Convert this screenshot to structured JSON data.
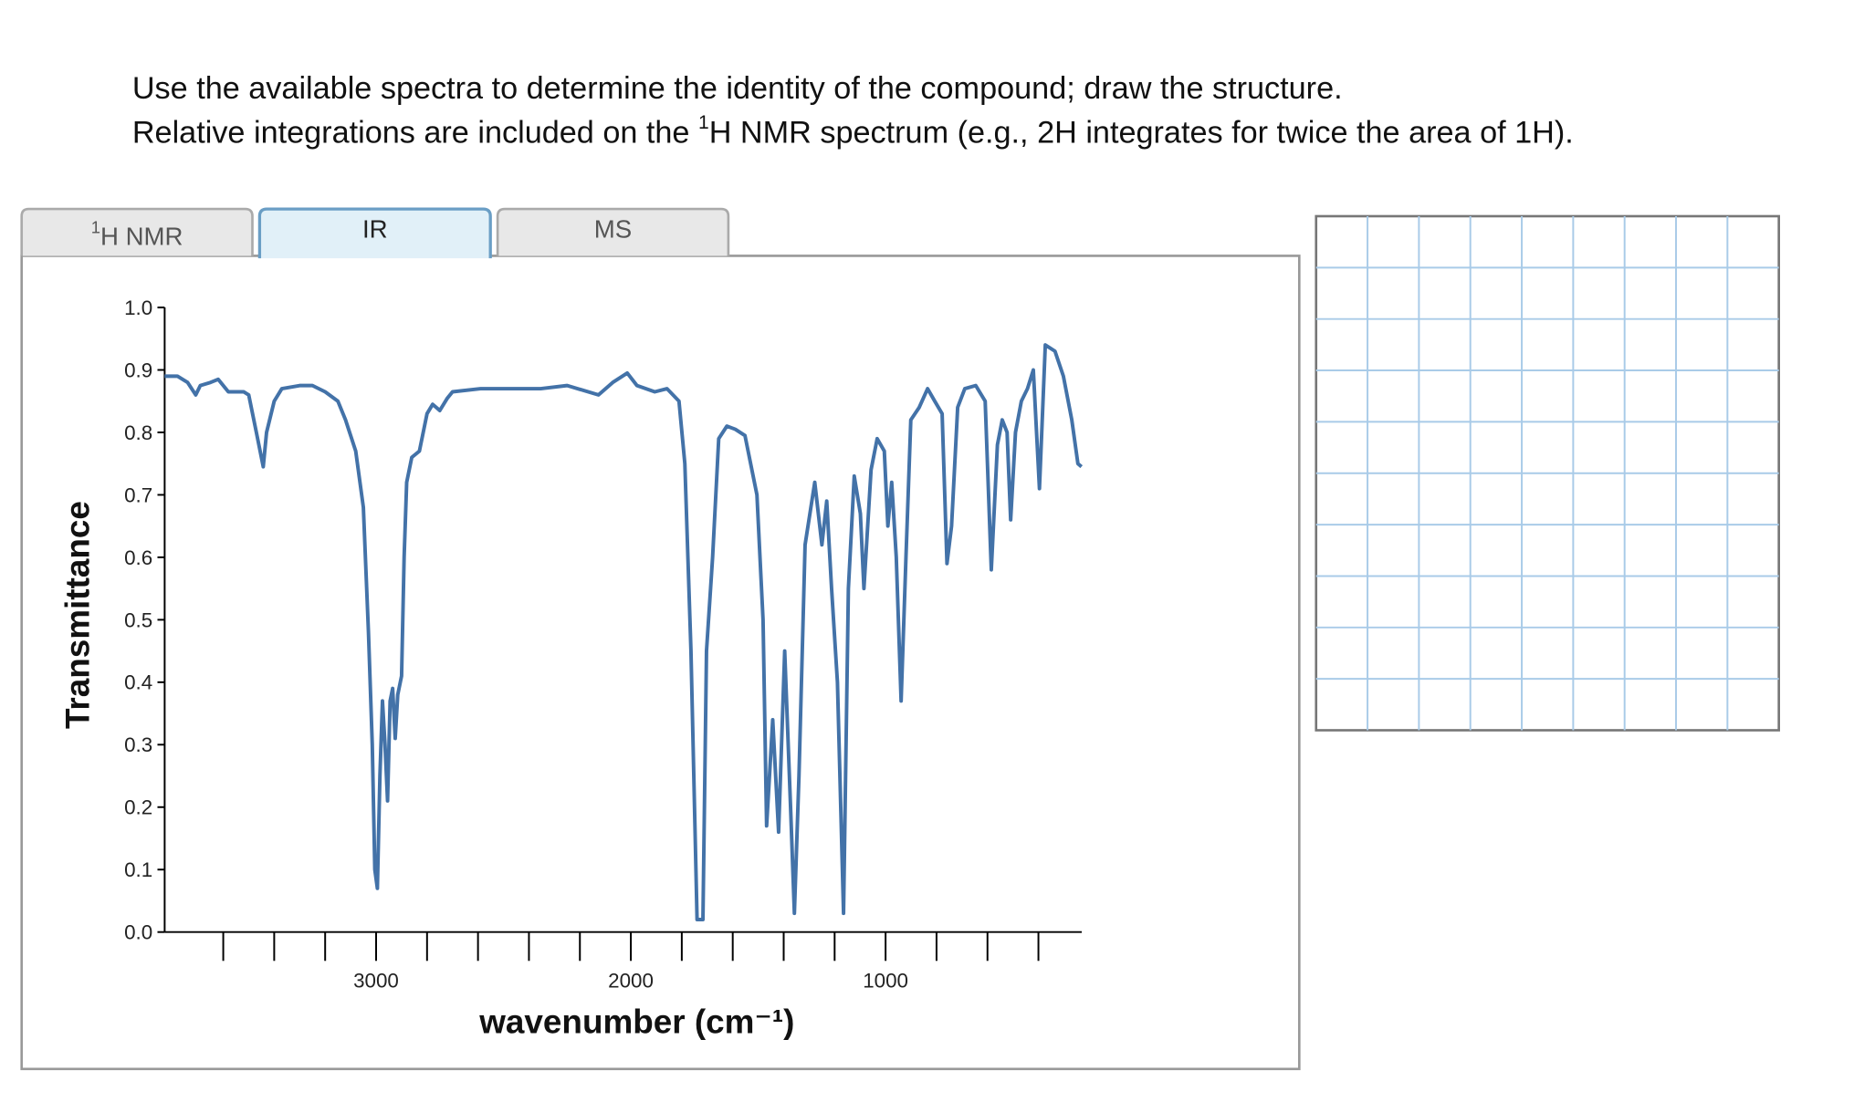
{
  "instructions": {
    "line1": "Use the available spectra to determine the identity of the compound; draw the structure.",
    "line2_before": "Relative integrations are included on the ",
    "line2_sup": "1",
    "line2_after": "H NMR spectrum (e.g., 2H integrates for twice the area of 1H)."
  },
  "tabs": [
    {
      "sup": "1",
      "label": "H NMR"
    },
    {
      "label": "IR"
    },
    {
      "label": "MS"
    }
  ],
  "chart_data": {
    "type": "line",
    "x_label": "wavenumber (cm⁻¹)",
    "y_label": "Transmittance",
    "color": "#4372a8",
    "xlim": [
      3830,
      230
    ],
    "ylim": [
      0,
      1
    ],
    "xticks": [
      3000,
      2000,
      1000
    ],
    "xminorticks": [
      3600,
      3400,
      3200,
      2800,
      2600,
      2400,
      2200,
      1800,
      1600,
      1400,
      1200,
      800,
      600,
      400
    ],
    "yticks": [
      {
        "value": 0,
        "label": "0.0"
      },
      {
        "value": 0.1,
        "label": "0.1"
      },
      {
        "value": 0.2,
        "label": "0.2"
      },
      {
        "value": 0.3,
        "label": "0.3"
      },
      {
        "value": 0.4,
        "label": "0.4"
      },
      {
        "value": 0.5,
        "label": "0.5"
      },
      {
        "value": 0.6,
        "label": "0.6"
      },
      {
        "value": 0.7,
        "label": "0.7"
      },
      {
        "value": 0.8,
        "label": "0.8"
      },
      {
        "value": 0.9,
        "label": "0.9"
      },
      {
        "value": 1,
        "label": "1.0"
      }
    ],
    "x": [
      3830,
      3780,
      3740,
      3708,
      3690,
      3650,
      3620,
      3580,
      3520,
      3500,
      3470,
      3443,
      3430,
      3400,
      3370,
      3300,
      3250,
      3200,
      3150,
      3120,
      3080,
      3050,
      3030,
      3015,
      3005,
      2995,
      2985,
      2975,
      2965,
      2955,
      2945,
      2935,
      2925,
      2915,
      2900,
      2890,
      2880,
      2860,
      2830,
      2800,
      2778,
      2750,
      2720,
      2700,
      2590,
      2500,
      2354,
      2250,
      2127,
      2071,
      2014,
      1976,
      1906,
      1858,
      1811,
      1788,
      1764,
      1740,
      1717,
      1703,
      1679,
      1655,
      1623,
      1590,
      1552,
      1505,
      1481,
      1467,
      1443,
      1420,
      1396,
      1373,
      1358,
      1340,
      1316,
      1278,
      1250,
      1231,
      1212,
      1189,
      1165,
      1146,
      1123,
      1099,
      1085,
      1057,
      1033,
      1005,
      991,
      976,
      958,
      939,
      920,
      901,
      868,
      835,
      807,
      778,
      759,
      741,
      717,
      689,
      646,
      609,
      585,
      561,
      542,
      523,
      509,
      490,
      467,
      443,
      420,
      396,
      373,
      335,
      302,
      269,
      245,
      231
    ],
    "values": [
      0.89,
      0.89,
      0.88,
      0.86,
      0.875,
      0.88,
      0.885,
      0.865,
      0.865,
      0.86,
      0.8,
      0.745,
      0.8,
      0.85,
      0.87,
      0.875,
      0.875,
      0.865,
      0.85,
      0.82,
      0.77,
      0.68,
      0.48,
      0.3,
      0.1,
      0.07,
      0.25,
      0.37,
      0.3,
      0.21,
      0.37,
      0.39,
      0.31,
      0.38,
      0.41,
      0.6,
      0.72,
      0.76,
      0.77,
      0.83,
      0.845,
      0.835,
      0.855,
      0.865,
      0.87,
      0.87,
      0.87,
      0.875,
      0.86,
      0.88,
      0.895,
      0.875,
      0.865,
      0.87,
      0.85,
      0.75,
      0.45,
      0.02,
      0.02,
      0.45,
      0.6,
      0.79,
      0.81,
      0.805,
      0.795,
      0.7,
      0.5,
      0.17,
      0.34,
      0.16,
      0.45,
      0.2,
      0.03,
      0.25,
      0.62,
      0.72,
      0.62,
      0.69,
      0.55,
      0.4,
      0.03,
      0.55,
      0.73,
      0.67,
      0.55,
      0.74,
      0.79,
      0.77,
      0.65,
      0.72,
      0.6,
      0.37,
      0.6,
      0.82,
      0.84,
      0.87,
      0.85,
      0.83,
      0.59,
      0.65,
      0.84,
      0.87,
      0.875,
      0.85,
      0.58,
      0.78,
      0.82,
      0.8,
      0.66,
      0.8,
      0.85,
      0.87,
      0.9,
      0.71,
      0.94,
      0.93,
      0.89,
      0.82,
      0.75,
      0.745
    ]
  }
}
